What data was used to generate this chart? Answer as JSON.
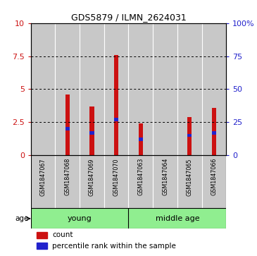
{
  "title": "GDS5879 / ILMN_2624031",
  "samples": [
    "GSM1847067",
    "GSM1847068",
    "GSM1847069",
    "GSM1847070",
    "GSM1847063",
    "GSM1847064",
    "GSM1847065",
    "GSM1847066"
  ],
  "counts": [
    0.0,
    4.6,
    3.7,
    7.6,
    2.4,
    0.0,
    2.9,
    3.6
  ],
  "percentiles": [
    0.0,
    2.0,
    1.7,
    2.7,
    1.2,
    0.0,
    1.5,
    1.7
  ],
  "groups": [
    "young",
    "young",
    "young",
    "young",
    "middle age",
    "middle age",
    "middle age",
    "middle age"
  ],
  "ylim_left": [
    0,
    10
  ],
  "ylim_right": [
    0,
    100
  ],
  "yticks_left": [
    0,
    2.5,
    5.0,
    7.5,
    10
  ],
  "yticks_right": [
    0,
    25,
    50,
    75,
    100
  ],
  "bar_color": "#cc1111",
  "percentile_color": "#2222cc",
  "background_color": "#ffffff",
  "bar_bg_color": "#c8c8c8",
  "age_label": "age",
  "legend_count": "count",
  "legend_percentile": "percentile rank within the sample",
  "green_color": "#90ee90"
}
